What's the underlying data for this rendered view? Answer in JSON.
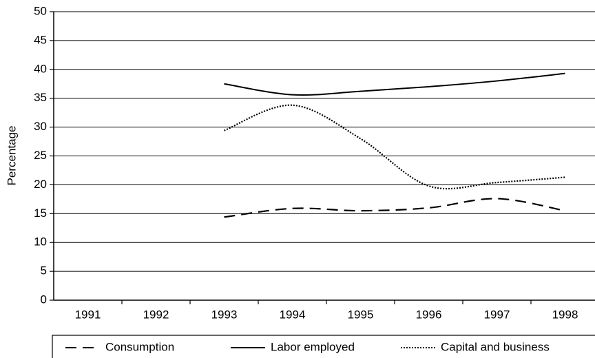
{
  "chart_data": {
    "type": "line",
    "y_label": "Percentage",
    "categories": [
      "1991",
      "1992",
      "1993",
      "1994",
      "1995",
      "1996",
      "1997",
      "1998"
    ],
    "series": [
      {
        "name": "Consumption",
        "color": "#000000",
        "style": "dashed",
        "values": [
          null,
          null,
          14.4,
          15.9,
          15.5,
          16,
          17.6,
          15.5
        ]
      },
      {
        "name": "Labor employed",
        "color": "#000000",
        "style": "solid",
        "values": [
          null,
          null,
          37.5,
          35.6,
          36.2,
          37,
          38,
          39.3
        ]
      },
      {
        "name": "Capital and business",
        "color": "#000000",
        "style": "dotted",
        "values": [
          null,
          null,
          29.4,
          33.8,
          28,
          19.8,
          20.4,
          21.3
        ]
      }
    ],
    "ylim": [
      0,
      50
    ],
    "yticks": [
      0,
      5,
      10,
      15,
      20,
      25,
      30,
      35,
      40,
      45,
      50
    ],
    "grid": true,
    "legend": "bottom"
  }
}
